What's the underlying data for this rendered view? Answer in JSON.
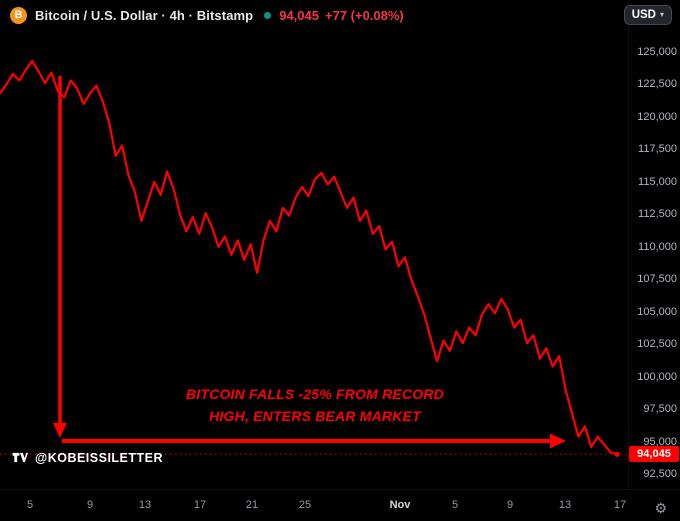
{
  "header": {
    "logo_glyph": "B",
    "title": "Bitcoin / U.S. Dollar · 4h · Bitstamp",
    "last_price": "94,045",
    "change": "+77 (+0.08%)",
    "currency": "USD"
  },
  "icons": {
    "dropdown_caret": "▾",
    "settings_gear": "⚙"
  },
  "annotation": {
    "line1": "BITCOIN FALLS -25% FROM RECORD",
    "line2": "HIGH, ENTERS BEAR MARKET"
  },
  "watermark": {
    "handle": "@KOBEISSILETTER"
  },
  "price_scale": {
    "last_price_label": "94,045"
  },
  "colors": {
    "background": "#000000",
    "line_red": "#FF0000",
    "header_price_red": "#F23645",
    "bitcoin_orange": "#F7931A",
    "status_green": "#089981",
    "axis_text": "#B2B5BE",
    "title_text": "#E8E9EB"
  },
  "chart_data": {
    "type": "line",
    "title": "Bitcoin / U.S. Dollar",
    "interval": "4h",
    "exchange": "Bitstamp",
    "unit": "USD",
    "x_description": "Day of month, early October through November 17",
    "ylim": [
      91300,
      126300
    ],
    "y_ticks": [
      125000,
      122500,
      120000,
      117500,
      115000,
      112500,
      110000,
      107500,
      105000,
      102500,
      100000,
      97500,
      95000,
      92500
    ],
    "x_ticks": [
      {
        "label": "5",
        "pos": 0.048
      },
      {
        "label": "9",
        "pos": 0.143
      },
      {
        "label": "13",
        "pos": 0.231
      },
      {
        "label": "17",
        "pos": 0.318
      },
      {
        "label": "21",
        "pos": 0.401
      },
      {
        "label": "25",
        "pos": 0.486
      },
      {
        "label": "Nov",
        "pos": 0.637,
        "strong": true
      },
      {
        "label": "5",
        "pos": 0.724
      },
      {
        "label": "9",
        "pos": 0.812
      },
      {
        "label": "13",
        "pos": 0.9
      },
      {
        "label": "17",
        "pos": 0.987
      }
    ],
    "last_price": 94045,
    "prices": [
      121800,
      122500,
      123300,
      122800,
      123600,
      124300,
      123500,
      122600,
      123400,
      122000,
      121500,
      122800,
      122200,
      121000,
      121800,
      122400,
      121200,
      119500,
      117000,
      117800,
      115500,
      114200,
      112000,
      113500,
      115000,
      114000,
      115800,
      114500,
      112500,
      111200,
      112300,
      111000,
      112600,
      111500,
      110000,
      110800,
      109400,
      110500,
      109000,
      110200,
      108000,
      110500,
      112000,
      111200,
      113000,
      112400,
      113800,
      114600,
      113900,
      115200,
      115700,
      114800,
      115400,
      114200,
      113000,
      113800,
      112000,
      112800,
      111000,
      111600,
      109800,
      110400,
      108500,
      109200,
      107500,
      106200,
      104800,
      103000,
      101200,
      102800,
      102000,
      103500,
      102600,
      103800,
      103200,
      104800,
      105600,
      104900,
      106000,
      105200,
      103800,
      104400,
      102600,
      103200,
      101400,
      102200,
      100800,
      101600,
      99000,
      97200,
      95400,
      96200,
      94600,
      95400,
      94800,
      94200,
      94045
    ]
  }
}
